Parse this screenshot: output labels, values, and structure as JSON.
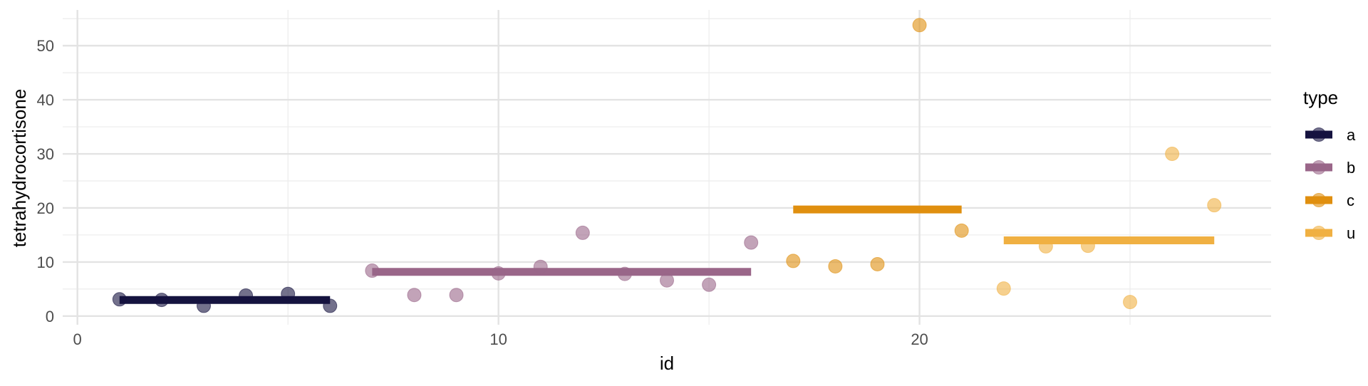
{
  "chart_data": {
    "type": "scatter",
    "title": "",
    "xlabel": "id",
    "ylabel": "tetrahydrocortisone",
    "xlim": [
      -0.35,
      28.35
    ],
    "ylim": [
      -1.6,
      56.6
    ],
    "x_ticks": [
      0,
      10,
      20
    ],
    "x_tick_labels": [
      "0",
      "10",
      "20"
    ],
    "x_minor_ticks": [
      5,
      15,
      25
    ],
    "y_ticks": [
      0,
      10,
      20,
      30,
      40,
      50
    ],
    "y_tick_labels": [
      "0",
      "10",
      "20",
      "30",
      "40",
      "50"
    ],
    "y_minor_ticks": [
      5,
      15,
      25,
      35,
      45,
      55
    ],
    "grid": true,
    "legend": {
      "title": "type",
      "position": "right"
    },
    "series": [
      {
        "name": "a",
        "color": "#15133f",
        "x": [
          1,
          2,
          3,
          4,
          5,
          6
        ],
        "y": [
          3.1,
          3.0,
          1.9,
          3.8,
          4.1,
          1.9
        ],
        "mean": 2.97,
        "mean_range": [
          1,
          6
        ]
      },
      {
        "name": "b",
        "color": "#9a6689",
        "x": [
          7,
          8,
          9,
          10,
          11,
          12,
          13,
          14,
          15,
          16
        ],
        "y": [
          8.4,
          3.9,
          3.9,
          7.9,
          9.1,
          15.4,
          7.8,
          6.6,
          5.8,
          13.6
        ],
        "mean": 8.18,
        "mean_range": [
          7,
          16
        ]
      },
      {
        "name": "c",
        "color": "#e08f0f",
        "x": [
          17,
          18,
          19,
          20,
          21
        ],
        "y": [
          10.2,
          9.2,
          9.6,
          53.8,
          15.8
        ],
        "mean": 19.72,
        "mean_range": [
          17,
          21
        ]
      },
      {
        "name": "u",
        "color": "#f0b042",
        "x": [
          22,
          23,
          24,
          25,
          26,
          27
        ],
        "y": [
          5.1,
          12.9,
          13.0,
          2.6,
          30.0,
          20.5
        ],
        "mean": 14.0,
        "mean_range": [
          22,
          27
        ]
      }
    ]
  }
}
